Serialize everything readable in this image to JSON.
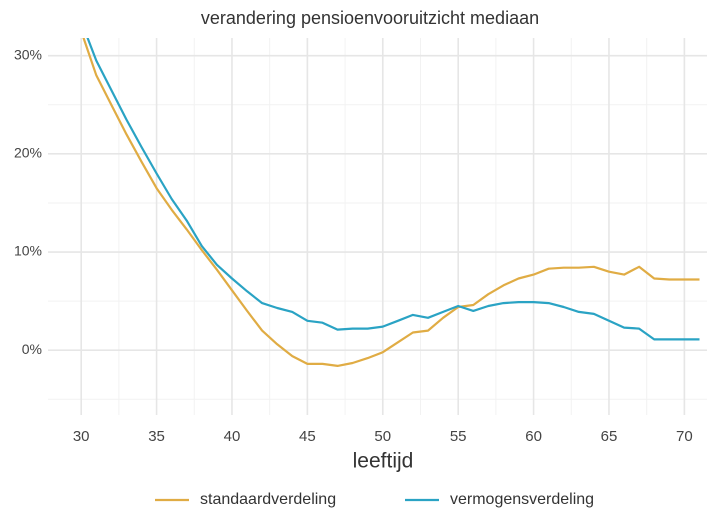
{
  "chart_data": {
    "type": "line",
    "title": "verandering pensioenvooruitzicht mediaan",
    "xlabel": "leeftijd",
    "x": [
      30,
      31,
      32,
      33,
      34,
      35,
      36,
      37,
      38,
      39,
      40,
      41,
      42,
      43,
      44,
      45,
      46,
      47,
      48,
      49,
      50,
      51,
      52,
      53,
      54,
      55,
      56,
      57,
      58,
      59,
      60,
      61,
      62,
      63,
      64,
      65,
      66,
      67,
      68,
      69,
      70,
      71
    ],
    "series": [
      {
        "name": "standaardverdeling",
        "color": "#e0ac44",
        "values": [
          32.5,
          28,
          25,
          22,
          19.2,
          16.5,
          14.3,
          12.3,
          10.2,
          8.2,
          6.1,
          4.0,
          2.0,
          0.6,
          -0.6,
          -1.4,
          -1.4,
          -1.6,
          -1.3,
          -0.8,
          -0.2,
          0.8,
          1.8,
          2.0,
          3.3,
          4.4,
          4.6,
          5.7,
          6.6,
          7.3,
          7.7,
          8.3,
          8.4,
          8.4,
          8.5,
          8.0,
          7.7,
          8.5,
          7.3,
          7.2,
          7.2,
          7.2
        ]
      },
      {
        "name": "vermogensverdeling",
        "color": "#2aa3c4",
        "values": [
          33.5,
          29.5,
          26.5,
          23.5,
          20.7,
          18.0,
          15.4,
          13.2,
          10.6,
          8.7,
          7.3,
          6.0,
          4.8,
          4.3,
          3.9,
          3.0,
          2.8,
          2.1,
          2.2,
          2.2,
          2.4,
          3.0,
          3.6,
          3.3,
          3.9,
          4.5,
          4.0,
          4.5,
          4.8,
          4.9,
          4.9,
          4.8,
          4.4,
          3.9,
          3.7,
          3.0,
          2.3,
          2.2,
          1.1,
          1.1,
          1.1,
          1.1
        ]
      }
    ],
    "xlim": [
      27.8,
      71.5
    ],
    "ylim": [
      -6.6,
      31.8
    ],
    "xticks": [
      30,
      35,
      40,
      45,
      50,
      55,
      60,
      65,
      70
    ],
    "yticks": [
      {
        "value": 0,
        "label": "0%"
      },
      {
        "value": 10,
        "label": "10%"
      },
      {
        "value": 20,
        "label": "20%"
      },
      {
        "value": 30,
        "label": "30%"
      }
    ],
    "xminor": [
      27.5,
      32.5,
      37.5,
      42.5,
      47.5,
      52.5,
      57.5,
      62.5,
      67.5
    ],
    "yminor": [
      -5,
      5,
      15,
      25
    ],
    "grid": true,
    "legend": "bottom"
  }
}
